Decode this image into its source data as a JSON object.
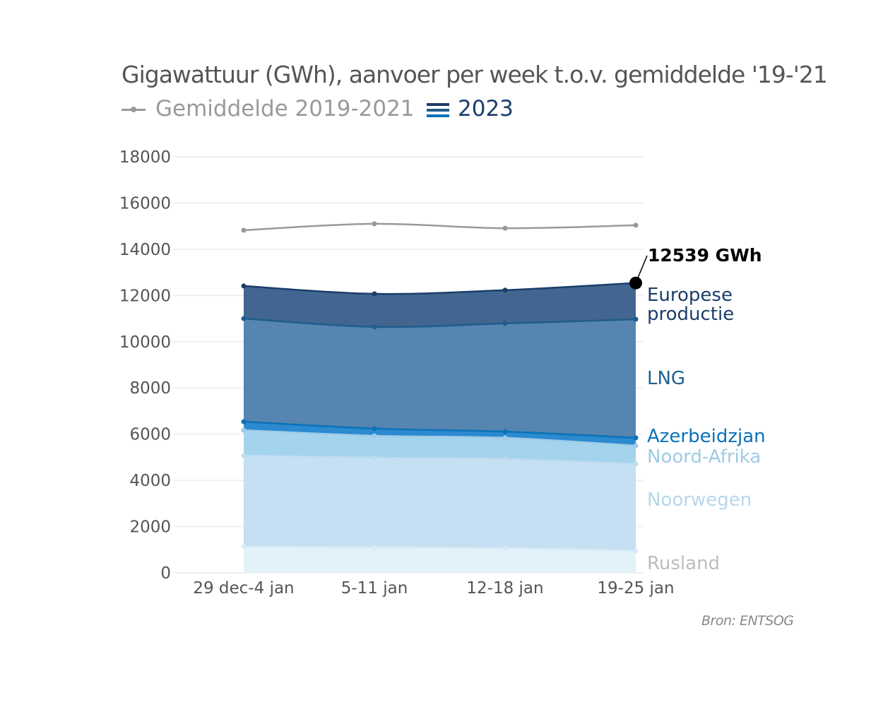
{
  "chart_data": {
    "type": "area",
    "stacked": true,
    "title": "Gigawattuur (GWh), aanvoer per week t.o.v. gemiddelde '19-'21",
    "source": "Bron: ENTSOG",
    "categories": [
      "29 dec-4 jan",
      "5-11 jan",
      "12-18 jan",
      "19-25 jan"
    ],
    "ylim": [
      0,
      18000
    ],
    "yticks": [
      0,
      2000,
      4000,
      6000,
      8000,
      10000,
      12000,
      14000,
      16000,
      18000
    ],
    "grid": true,
    "legend": {
      "average_label": "Gemiddelde 2019-2021",
      "current_label": "2023",
      "placement": "top-left"
    },
    "average": {
      "name": "Gemiddelde 2019-2021",
      "color": "#999999",
      "values": [
        14820,
        15100,
        14910,
        15040
      ]
    },
    "series": [
      {
        "name": "Rusland",
        "values": [
          1130,
          1100,
          1070,
          950
        ],
        "fill": "#e3f1f9",
        "line": "#d8ebf6",
        "label_color": "#bdbdbd"
      },
      {
        "name": "Noorwegen",
        "values": [
          3940,
          3880,
          3850,
          3760
        ],
        "fill": "#c4e0f2",
        "line": "#c0dcef",
        "label_color": "#b6d7ea"
      },
      {
        "name": "Noord-Afrika",
        "values": [
          1100,
          950,
          920,
          790
        ],
        "fill": "#a4d3ee",
        "line": "#9fcbe6",
        "label_color": "#9fcbe3"
      },
      {
        "name": "Azerbeidzjan",
        "values": [
          370,
          310,
          270,
          340
        ],
        "fill": "#2b8ad0",
        "line": "#0a72b8",
        "label_color": "#0a72b8"
      },
      {
        "name": "LNG",
        "values": [
          4460,
          4400,
          4680,
          5130
        ],
        "fill": "#5585b0",
        "line": "#1f5c8c",
        "label_color": "#1f5f8b"
      },
      {
        "name": "Europese productie",
        "values": [
          1410,
          1430,
          1440,
          1569
        ],
        "fill": "#42668f",
        "line": "#1a3e6b",
        "label_color": "#1b3e6a"
      }
    ],
    "annotation": {
      "text": "12539 GWh",
      "total": 12539
    }
  }
}
